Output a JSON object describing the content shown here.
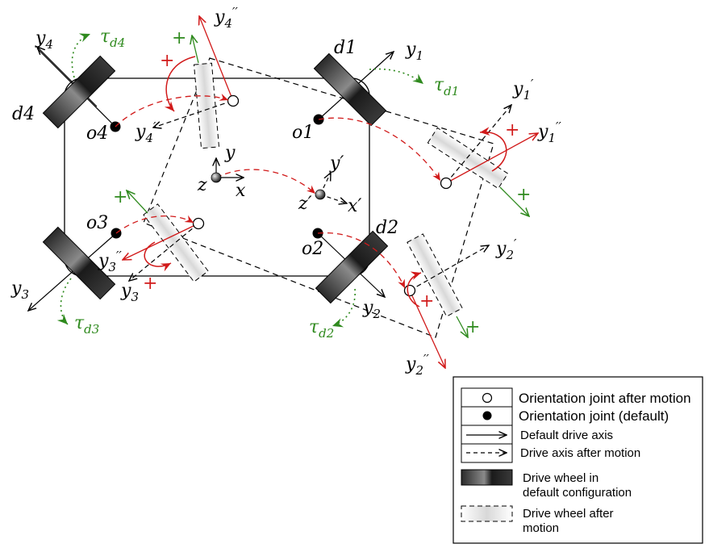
{
  "labels": {
    "d1": "d1",
    "d2": "d2",
    "d3": "",
    "d4": "d4",
    "o1": "o1",
    "o2": "o2",
    "o3": "o3",
    "o4": "o4",
    "y1": "y",
    "y1_sub": "1",
    "y2": "y",
    "y2_sub": "2",
    "y3": "y",
    "y3_sub": "3",
    "y4": "y",
    "y4_sub": "4",
    "y1p": "y",
    "y1p_sub": "1",
    "y1p_sup": "′",
    "y2p": "y",
    "y2p_sub": "2",
    "y2p_sup": "′",
    "y3pp": "y",
    "y3pp_sub": "3",
    "y3pp_sup": "′′",
    "y4p": "y",
    "y4p_sub": "4",
    "y4p_sup": "′",
    "y1pp": "y",
    "y1pp_sub": "1",
    "y1pp_sup": "′′",
    "y2pp": "y",
    "y2pp_sub": "2",
    "y2pp_sup": "′′",
    "y4pp": "y",
    "y4pp_sub": "4",
    "y4pp_sup": "′′",
    "tau": "τ",
    "tau_d1": "d1",
    "tau_d2": "d2",
    "tau_d3": "d3",
    "tau_d4": "d4",
    "center_y": "y",
    "center_x": "x",
    "center_z": "z",
    "center_yp": "y′",
    "center_xp": "x′",
    "center_zp": "z′",
    "plus": "+"
  },
  "legend": {
    "items": [
      {
        "label": "Orientation joint after motion"
      },
      {
        "label": "Orientation joint (default)"
      },
      {
        "label": "Default drive axis"
      },
      {
        "label": "Drive axis after motion"
      },
      {
        "label_line1": "Drive wheel in",
        "label_line2": "default configuration"
      },
      {
        "label_line1": "Drive wheel after",
        "label_line2": "motion"
      }
    ]
  },
  "colors": {
    "red": "#d11a1a",
    "green": "#2f8a1e",
    "black": "#000000"
  }
}
